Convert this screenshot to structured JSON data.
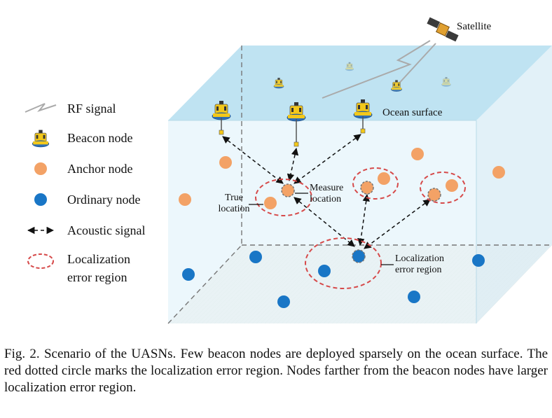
{
  "labels": {
    "satellite": "Satellite",
    "ocean_surface": "Ocean surface",
    "true_location_line1": "True",
    "true_location_line2": "location",
    "measure_location_line1": "Measure",
    "measure_location_line2": "location",
    "error_region_line1": "Localization",
    "error_region_line2": "error region"
  },
  "legend": {
    "rf_signal": "RF signal",
    "beacon_node": "Beacon node",
    "anchor_node": "Anchor node",
    "ordinary_node": "Ordinary node",
    "acoustic_signal": "Acoustic signal",
    "error_region_line1": "Localization",
    "error_region_line2": "error region"
  },
  "caption": "Fig. 2.   Scenario of the UASNs. Few beacon nodes are deployed sparsely on the ocean surface. The red dotted circle marks the localization error region. Nodes farther from the beacon nodes have larger localization error region.",
  "colors": {
    "surface": "#bfe3f2",
    "water": "#e9f6fb",
    "seabed": "#e7ded0",
    "anchor": "#f3a266",
    "ordinary": "#1976c6",
    "error_circle": "#d64a4a",
    "buoy_yellow": "#f3c81a",
    "buoy_blue": "#2f6fb5"
  }
}
